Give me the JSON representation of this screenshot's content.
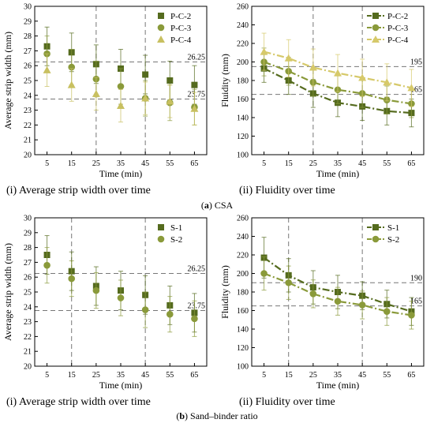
{
  "captions": {
    "group_a": {
      "letter": "a",
      "text": "CSA"
    },
    "group_b": {
      "letter": "b",
      "text": "Sand–binder ratio"
    },
    "panels": [
      "(i) Average strip width over time",
      "(ii) Fluidity over time",
      "(i) Average strip width over time",
      "(ii) Fluidity over time"
    ]
  },
  "chart_data": [
    {
      "type": "scatter",
      "xlabel": "Time (min)",
      "ylabel": "Average strip width (mm)",
      "x": [
        5,
        15,
        25,
        35,
        45,
        55,
        65
      ],
      "xlim": [
        0,
        70
      ],
      "ylim": [
        20,
        30
      ],
      "yticks": [
        20,
        21,
        22,
        23,
        24,
        25,
        26,
        27,
        28,
        29,
        30
      ],
      "vlines": [
        25,
        45
      ],
      "hlines": [
        {
          "value": 26.25,
          "label": "26.25"
        },
        {
          "value": 23.75,
          "label": "23.75"
        }
      ],
      "legend_position": "top-right",
      "series": [
        {
          "name": "P-C-2",
          "marker": "square",
          "color": "#556b1e",
          "values": [
            27.3,
            26.9,
            26.1,
            25.8,
            25.4,
            25.0,
            24.7
          ],
          "errors": [
            1.3,
            1.3,
            1.3,
            1.3,
            1.3,
            1.3,
            1.3
          ]
        },
        {
          "name": "P-C-3",
          "marker": "circle",
          "color": "#8a9a3a",
          "values": [
            26.8,
            25.9,
            25.1,
            24.6,
            23.8,
            23.5,
            23.2
          ],
          "errors": [
            1.2,
            1.2,
            1.2,
            1.2,
            1.2,
            1.2,
            1.2
          ]
        },
        {
          "name": "P-C-4",
          "marker": "triangle",
          "color": "#c8c060",
          "values": [
            25.7,
            24.7,
            24.1,
            23.3,
            23.8,
            23.6,
            23.1
          ],
          "errors": [
            1.1,
            1.1,
            1.1,
            1.1,
            1.1,
            1.1,
            1.1
          ]
        }
      ]
    },
    {
      "type": "line",
      "xlabel": "Time (min)",
      "ylabel": "Fluidity (mm)",
      "x": [
        5,
        15,
        25,
        35,
        45,
        55,
        65
      ],
      "xlim": [
        0,
        70
      ],
      "ylim": [
        100,
        260
      ],
      "yticks": [
        100,
        120,
        140,
        160,
        180,
        200,
        220,
        240,
        260
      ],
      "vlines": [
        25,
        45
      ],
      "hlines": [
        {
          "value": 195,
          "label": "195"
        },
        {
          "value": 165,
          "label": "165"
        }
      ],
      "legend_position": "top-right",
      "series": [
        {
          "name": "P-C-2",
          "marker": "square",
          "color": "#556b1e",
          "values": [
            193,
            180,
            166,
            156,
            152,
            147,
            145
          ],
          "errors": [
            15,
            15,
            15,
            15,
            15,
            15,
            15
          ]
        },
        {
          "name": "P-C-3",
          "marker": "circle",
          "color": "#8a9a3a",
          "values": [
            200,
            190,
            178,
            170,
            166,
            159,
            155
          ],
          "errors": [
            15,
            15,
            15,
            15,
            15,
            15,
            15
          ]
        },
        {
          "name": "P-C-4",
          "marker": "triangle",
          "color": "#d6c96a",
          "values": [
            211,
            204,
            194,
            188,
            183,
            178,
            172
          ],
          "errors": [
            20,
            20,
            20,
            20,
            20,
            20,
            20
          ]
        }
      ]
    },
    {
      "type": "scatter",
      "xlabel": "Time (min)",
      "ylabel": "Average strip width (mm)",
      "x": [
        5,
        15,
        25,
        35,
        45,
        55,
        65
      ],
      "xlim": [
        0,
        70
      ],
      "ylim": [
        20,
        30
      ],
      "yticks": [
        20,
        21,
        22,
        23,
        24,
        25,
        26,
        27,
        28,
        29,
        30
      ],
      "vlines": [
        15,
        45
      ],
      "hlines": [
        {
          "value": 26.25,
          "label": "26.25"
        },
        {
          "value": 23.75,
          "label": "23.75"
        }
      ],
      "legend_position": "top-right",
      "series": [
        {
          "name": "S-1",
          "marker": "square",
          "color": "#556b1e",
          "values": [
            27.5,
            26.4,
            25.4,
            25.1,
            24.8,
            24.1,
            23.6
          ],
          "errors": [
            1.3,
            1.3,
            1.3,
            1.3,
            1.3,
            1.3,
            1.3
          ]
        },
        {
          "name": "S-2",
          "marker": "circle",
          "color": "#8a9a3a",
          "values": [
            26.8,
            25.9,
            25.1,
            24.6,
            23.8,
            23.5,
            23.2
          ],
          "errors": [
            1.2,
            1.2,
            1.2,
            1.2,
            1.2,
            1.2,
            1.2
          ]
        }
      ]
    },
    {
      "type": "line",
      "xlabel": "Time (min)",
      "ylabel": "Fluidity (mm)",
      "x": [
        5,
        15,
        25,
        35,
        45,
        55,
        65
      ],
      "xlim": [
        0,
        70
      ],
      "ylim": [
        100,
        260
      ],
      "yticks": [
        100,
        120,
        140,
        160,
        180,
        200,
        220,
        240,
        260
      ],
      "vlines": [
        15,
        45
      ],
      "hlines": [
        {
          "value": 190,
          "label": "190"
        },
        {
          "value": 165,
          "label": "165"
        }
      ],
      "legend_position": "top-right",
      "series": [
        {
          "name": "S-1",
          "marker": "square",
          "color": "#556b1e",
          "values": [
            217,
            198,
            185,
            180,
            176,
            167,
            159
          ],
          "errors": [
            22,
            18,
            18,
            18,
            15,
            15,
            15
          ]
        },
        {
          "name": "S-2",
          "marker": "circle",
          "color": "#8a9a3a",
          "values": [
            200,
            190,
            178,
            170,
            166,
            159,
            155
          ],
          "errors": [
            18,
            18,
            15,
            15,
            15,
            15,
            15
          ]
        }
      ]
    }
  ]
}
